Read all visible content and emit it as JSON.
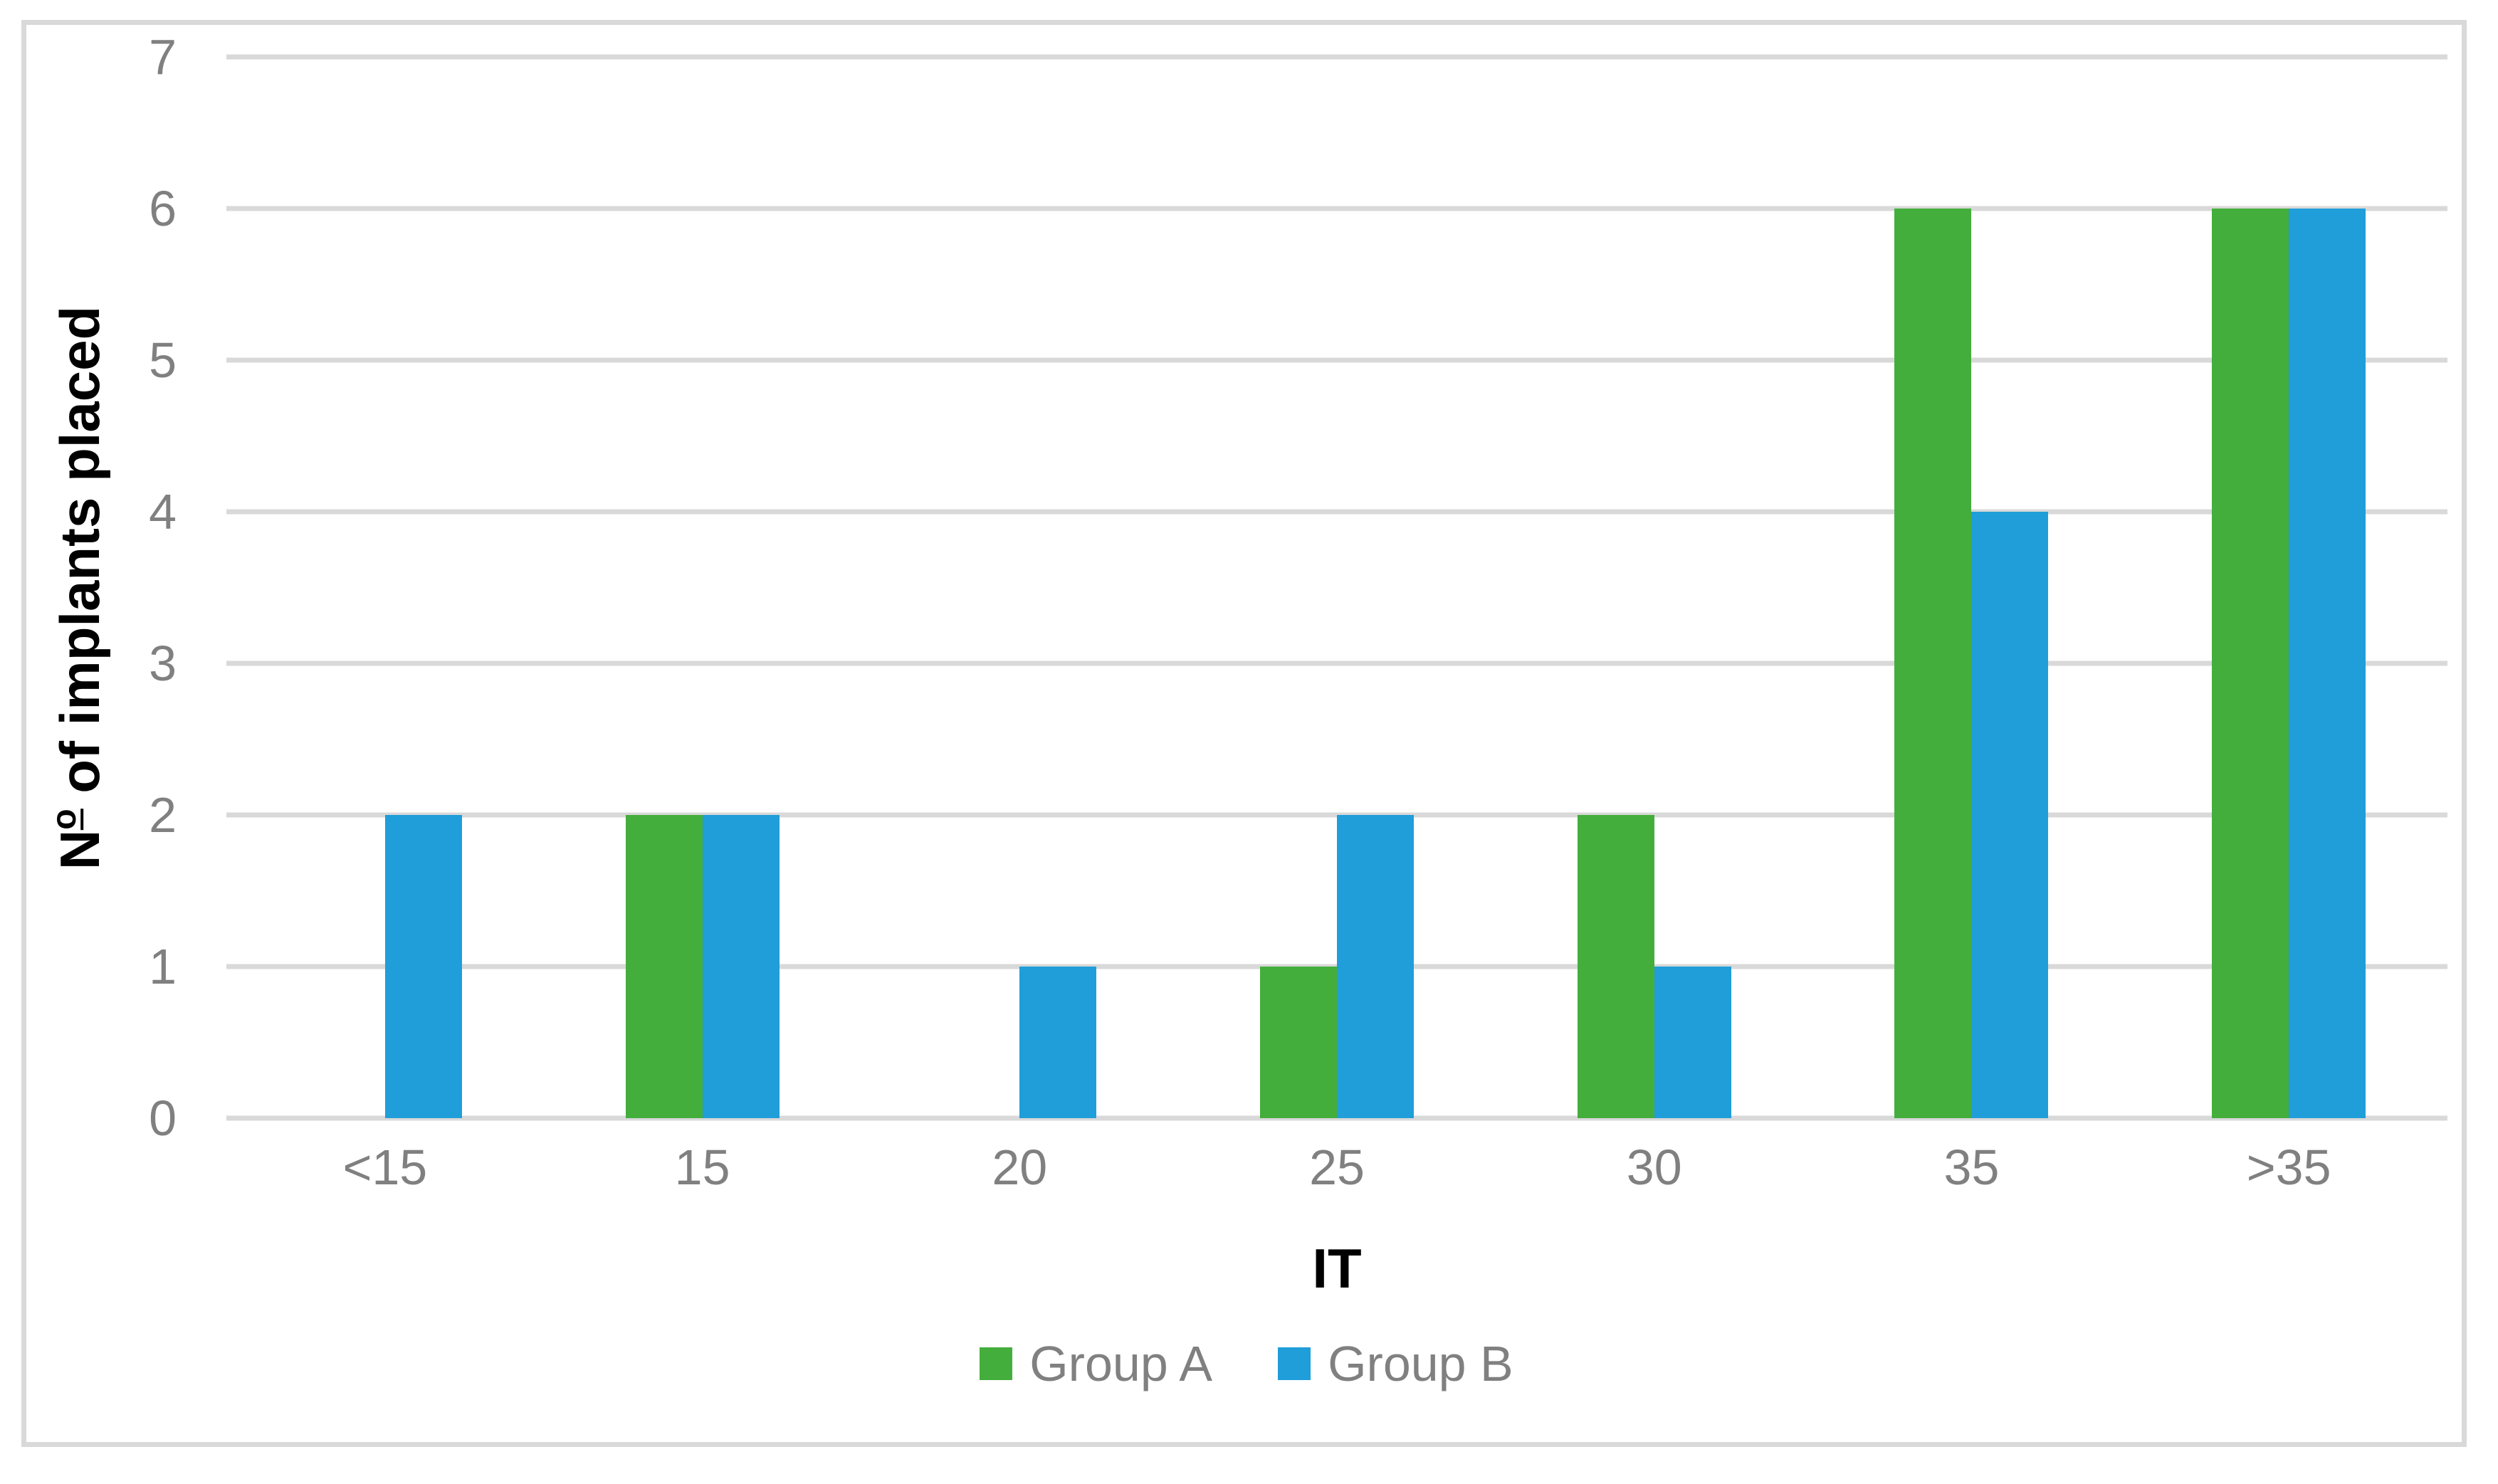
{
  "figure": {
    "background_color": "#FFFFFF",
    "border_color": "#D9D9D9",
    "gridline_color": "#D9D9D9",
    "tick_label_color": "#808080",
    "axis_title_color": "#000000",
    "legend_text_color": "#808080"
  },
  "chart_data": {
    "type": "bar",
    "title": "",
    "categories": [
      "<15",
      "15",
      "20",
      "25",
      "30",
      "35",
      ">35"
    ],
    "series": [
      {
        "name": "Group A",
        "color": "#44AE3C",
        "values": [
          0,
          2,
          0,
          1,
          2,
          6,
          6
        ]
      },
      {
        "name": "Group B",
        "color": "#1F9ED9",
        "values": [
          2,
          2,
          1,
          2,
          1,
          4,
          6
        ]
      }
    ],
    "xlabel": "IT",
    "ylabel": "Nº of implants placed",
    "ylim": [
      0,
      7
    ],
    "yticks": [
      0,
      1,
      2,
      3,
      4,
      5,
      6,
      7
    ],
    "grid": "horizontal",
    "legend_position": "bottom-center",
    "legend_entries": [
      "Group A",
      "Group B"
    ]
  }
}
